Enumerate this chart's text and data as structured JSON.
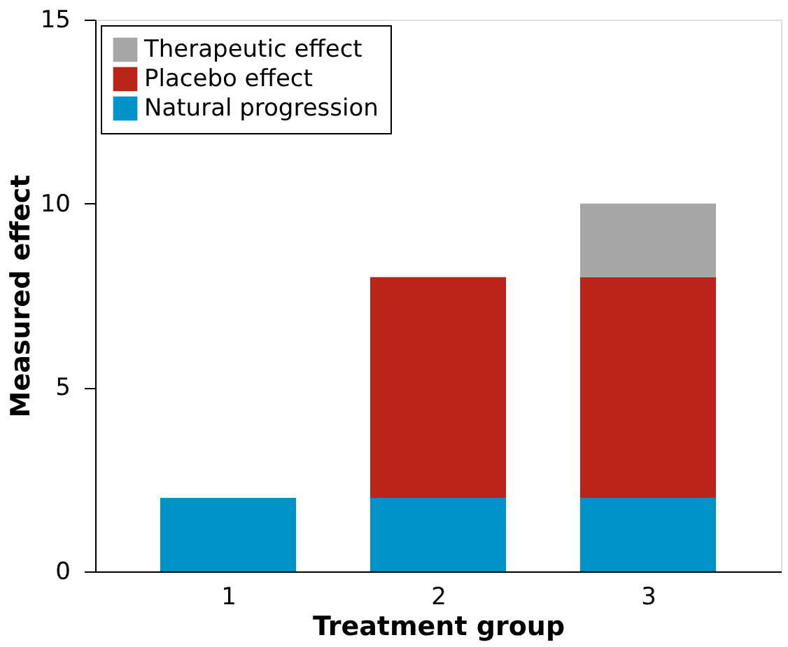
{
  "chart_data": {
    "type": "bar",
    "stacked": true,
    "xlabel": "Treatment group",
    "ylabel": "Measured effect",
    "categories": [
      "1",
      "2",
      "3"
    ],
    "series": [
      {
        "name": "Natural progression",
        "color": "#0093c9",
        "values": [
          2,
          2,
          2
        ]
      },
      {
        "name": "Placebo effect",
        "color": "#bb2418",
        "values": [
          null,
          6,
          6
        ]
      },
      {
        "name": "Therapeutic effect",
        "color": "#a6a6a6",
        "values": [
          null,
          null,
          2
        ]
      }
    ],
    "ylim": [
      0,
      15
    ],
    "yticks": [
      0,
      5,
      10,
      15
    ],
    "grid": false,
    "legend": "top left"
  }
}
